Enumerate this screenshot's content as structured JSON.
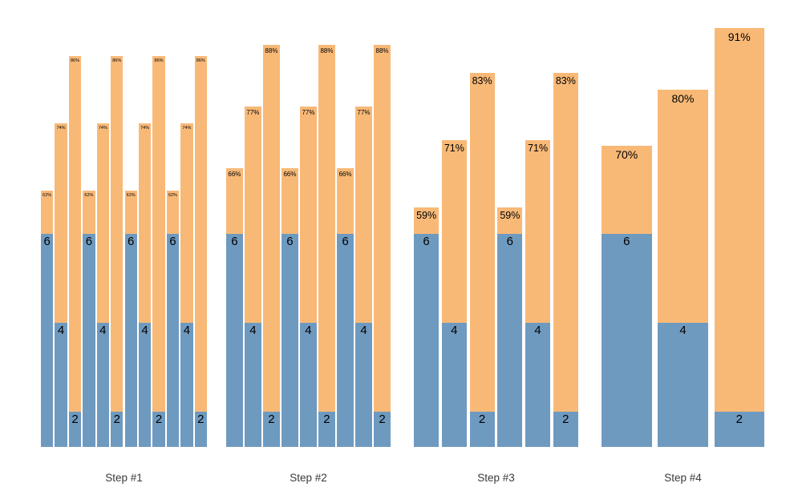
{
  "chart_data": {
    "type": "bar",
    "subtype": "grouped-stacked",
    "title": "",
    "xlabel": "",
    "ylabel": "",
    "legend": "none",
    "axes_visible": false,
    "grid": false,
    "colors": {
      "bottom_segment": "#6f9ac0",
      "top_segment": "#f8b977",
      "bar_label_text": "#000000",
      "axis_label_text": "#3a3a3a",
      "background": "#ffffff"
    },
    "segment_semantics": {
      "bottom_blue_label": "value (6 / 4 / 2) shown at top of blue segment",
      "top_orange_label": "percentage shown at top of orange segment"
    },
    "groups": [
      {
        "label": "Step #1",
        "bars": [
          {
            "value": 6,
            "pct": 62,
            "pct_label": "62%"
          },
          {
            "value": 4,
            "pct": 74,
            "pct_label": "74%"
          },
          {
            "value": 2,
            "pct": 86,
            "pct_label": "86%"
          },
          {
            "value": 6,
            "pct": 62,
            "pct_label": "62%"
          },
          {
            "value": 4,
            "pct": 74,
            "pct_label": "74%"
          },
          {
            "value": 2,
            "pct": 86,
            "pct_label": "86%"
          },
          {
            "value": 6,
            "pct": 62,
            "pct_label": "62%"
          },
          {
            "value": 4,
            "pct": 74,
            "pct_label": "74%"
          },
          {
            "value": 2,
            "pct": 86,
            "pct_label": "86%"
          },
          {
            "value": 6,
            "pct": 62,
            "pct_label": "62%"
          },
          {
            "value": 4,
            "pct": 74,
            "pct_label": "74%"
          },
          {
            "value": 2,
            "pct": 86,
            "pct_label": "86%"
          }
        ]
      },
      {
        "label": "Step #2",
        "bars": [
          {
            "value": 6,
            "pct": 66,
            "pct_label": "66%"
          },
          {
            "value": 4,
            "pct": 77,
            "pct_label": "77%"
          },
          {
            "value": 2,
            "pct": 88,
            "pct_label": "88%"
          },
          {
            "value": 6,
            "pct": 66,
            "pct_label": "66%"
          },
          {
            "value": 4,
            "pct": 77,
            "pct_label": "77%"
          },
          {
            "value": 2,
            "pct": 88,
            "pct_label": "88%"
          },
          {
            "value": 6,
            "pct": 66,
            "pct_label": "66%"
          },
          {
            "value": 4,
            "pct": 77,
            "pct_label": "77%"
          },
          {
            "value": 2,
            "pct": 88,
            "pct_label": "88%"
          }
        ]
      },
      {
        "label": "Step #3",
        "bars": [
          {
            "value": 6,
            "pct": 59,
            "pct_label": "59%"
          },
          {
            "value": 4,
            "pct": 71,
            "pct_label": "71%"
          },
          {
            "value": 2,
            "pct": 83,
            "pct_label": "83%"
          },
          {
            "value": 6,
            "pct": 59,
            "pct_label": "59%"
          },
          {
            "value": 4,
            "pct": 71,
            "pct_label": "71%"
          },
          {
            "value": 2,
            "pct": 83,
            "pct_label": "83%"
          }
        ]
      },
      {
        "label": "Step #4",
        "bars": [
          {
            "value": 6,
            "pct": 70,
            "pct_label": "70%"
          },
          {
            "value": 4,
            "pct": 80,
            "pct_label": "80%"
          },
          {
            "value": 2,
            "pct": 91,
            "pct_label": "91%"
          }
        ]
      }
    ]
  }
}
